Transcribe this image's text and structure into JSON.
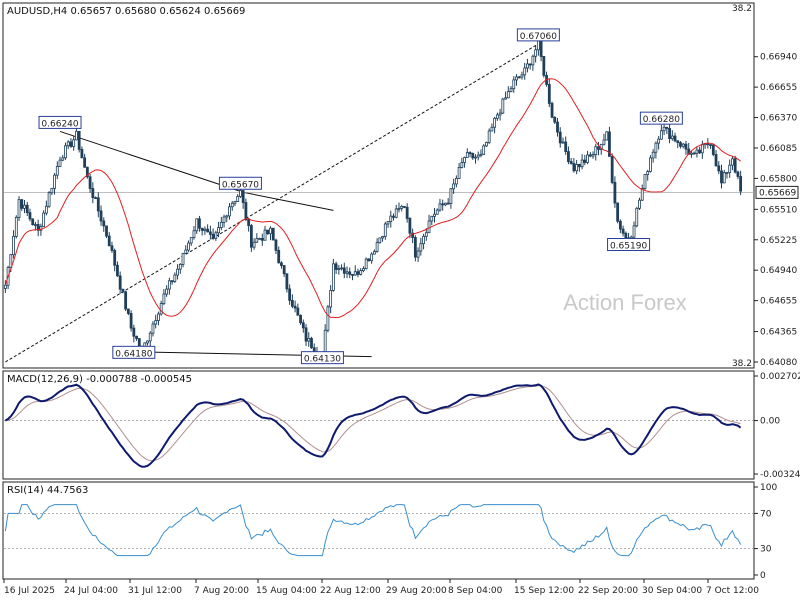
{
  "chart_data": {
    "type": "candlestick",
    "main": {
      "title": "AUDUSD,H4  0.65657 0.65680 0.65624 0.65669",
      "ylim": [
        0.6408,
        0.6734
      ],
      "ticks": [
        "0.66940",
        "0.66655",
        "0.66370",
        "0.66085",
        "0.65800",
        "0.65510",
        "0.65225",
        "0.64940",
        "0.64655",
        "0.64365",
        "0.64080"
      ],
      "current_price": "0.65669",
      "fib_label_top": "38.2",
      "fib_label_bottom": "38.2",
      "watermark": "Action Forex",
      "pivots": [
        {
          "label": "0.66240",
          "value": 0.6624
        },
        {
          "label": "0.64180",
          "value": 0.6418
        },
        {
          "label": "0.65670",
          "value": 0.6567
        },
        {
          "label": "0.64130",
          "value": 0.6413
        },
        {
          "label": "0.67060",
          "value": 0.6706
        },
        {
          "label": "0.65190",
          "value": 0.6519
        },
        {
          "label": "0.66280",
          "value": 0.6628
        }
      ],
      "ma_label": "",
      "anchors": [
        [
          0,
          0.648
        ],
        [
          5,
          0.656
        ],
        [
          12,
          0.653
        ],
        [
          20,
          0.66
        ],
        [
          26,
          0.662
        ],
        [
          30,
          0.658
        ],
        [
          38,
          0.652
        ],
        [
          46,
          0.644
        ],
        [
          50,
          0.6418
        ],
        [
          58,
          0.647
        ],
        [
          64,
          0.65
        ],
        [
          70,
          0.654
        ],
        [
          76,
          0.652
        ],
        [
          82,
          0.6555
        ],
        [
          86,
          0.6567
        ],
        [
          90,
          0.652
        ],
        [
          97,
          0.653
        ],
        [
          104,
          0.647
        ],
        [
          110,
          0.643
        ],
        [
          116,
          0.6413
        ],
        [
          120,
          0.65
        ],
        [
          128,
          0.649
        ],
        [
          134,
          0.651
        ],
        [
          140,
          0.654
        ],
        [
          146,
          0.6555
        ],
        [
          150,
          0.651
        ],
        [
          156,
          0.6545
        ],
        [
          162,
          0.656
        ],
        [
          168,
          0.66
        ],
        [
          174,
          0.66
        ],
        [
          180,
          0.664
        ],
        [
          186,
          0.667
        ],
        [
          190,
          0.668
        ],
        [
          195,
          0.6706
        ],
        [
          200,
          0.664
        ],
        [
          204,
          0.661
        ],
        [
          208,
          0.659
        ],
        [
          214,
          0.66
        ],
        [
          220,
          0.662
        ],
        [
          224,
          0.654
        ],
        [
          228,
          0.6519
        ],
        [
          232,
          0.656
        ],
        [
          236,
          0.66
        ],
        [
          240,
          0.6628
        ],
        [
          246,
          0.6615
        ],
        [
          252,
          0.66
        ],
        [
          258,
          0.6615
        ],
        [
          262,
          0.6575
        ],
        [
          266,
          0.66
        ],
        [
          269,
          0.6567
        ]
      ]
    },
    "macd": {
      "label": "MACD(12,26,9) -0.000788 -0.000545",
      "ticks": [
        "0.002702",
        "0.00",
        "-0.003241"
      ],
      "ylim": [
        -0.003241,
        0.002702
      ]
    },
    "rsi": {
      "label": "RSI(14) 44.7563",
      "ticks": [
        "100",
        "70",
        "30",
        "0"
      ],
      "ylim": [
        0,
        100
      ]
    },
    "x_axis": {
      "labels": [
        "16 Jul 2025",
        "24 Jul 04:00",
        "31 Jul 12:00",
        "7 Aug 20:00",
        "15 Aug 04:00",
        "22 Aug 12:00",
        "29 Aug 20:00",
        "8 Sep 04:00",
        "15 Sep 12:00",
        "22 Sep 20:00",
        "30 Sep 04:00",
        "7 Oct 12:00"
      ]
    },
    "colors": {
      "bull": "#1f3f5a",
      "bear": "#1f3f5a",
      "ma": "#e02020",
      "macd": "#0d1a6e",
      "signal": "#b09090",
      "rsi": "#3a8fd0",
      "frame": "#222222"
    }
  }
}
